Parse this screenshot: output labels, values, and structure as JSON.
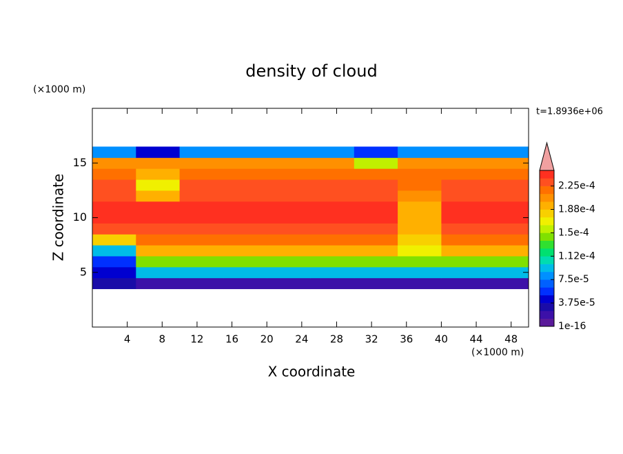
{
  "chart_data": {
    "type": "heatmap",
    "title": "density of cloud",
    "x_label": "X coordinate",
    "y_label": "Z coordinate",
    "x_unit": "(×1000 m)",
    "y_unit": "(×1000 m)",
    "time_label": "t=1.8936e+06",
    "xlim": [
      0,
      50
    ],
    "ylim": [
      0,
      20
    ],
    "xticks": [
      4,
      8,
      12,
      16,
      20,
      24,
      28,
      32,
      36,
      40,
      44,
      48
    ],
    "yticks": [
      5,
      10,
      15
    ],
    "x_edges": [
      0,
      5,
      10,
      15,
      20,
      25,
      30,
      35,
      40,
      45,
      50
    ],
    "y_edges": [
      3.5,
      4.5,
      5.5,
      6.5,
      7.5,
      8.5,
      9.5,
      10.5,
      11.5,
      12.5,
      13.5,
      14.5,
      15.5,
      16.5
    ],
    "values": [
      [
        3e-05,
        2e-05,
        2e-05,
        2e-05,
        2e-05,
        2e-05,
        2e-05,
        2e-05,
        2e-05,
        2e-05
      ],
      [
        4e-05,
        9e-05,
        9e-05,
        9e-05,
        9e-05,
        9e-05,
        9e-05,
        9e-05,
        9e-05,
        9e-05
      ],
      [
        6e-05,
        0.00015,
        0.00015,
        0.00015,
        0.00015,
        0.00015,
        0.00015,
        0.00015,
        0.00015,
        0.00015
      ],
      [
        0.0001,
        0.00019,
        0.00019,
        0.00019,
        0.00019,
        0.00019,
        0.00019,
        0.00017,
        0.00019,
        0.00019
      ],
      [
        0.00018,
        0.000215,
        0.000215,
        0.000215,
        0.000215,
        0.000215,
        0.000215,
        0.00018,
        0.000215,
        0.000215
      ],
      [
        0.00023,
        0.00023,
        0.00023,
        0.00023,
        0.00023,
        0.00023,
        0.00023,
        0.00019,
        0.00023,
        0.00023
      ],
      [
        0.00024,
        0.00024,
        0.00024,
        0.00024,
        0.00024,
        0.00024,
        0.00024,
        0.00019,
        0.00024,
        0.00024
      ],
      [
        0.00024,
        0.00024,
        0.00024,
        0.00024,
        0.00024,
        0.00024,
        0.00024,
        0.0002,
        0.00024,
        0.00024
      ],
      [
        0.000235,
        0.00019,
        0.000235,
        0.000235,
        0.000235,
        0.000235,
        0.000235,
        0.00021,
        0.000235,
        0.000235
      ],
      [
        0.00023,
        0.00017,
        0.00023,
        0.00023,
        0.00023,
        0.00023,
        0.00023,
        0.00022,
        0.00023,
        0.00023
      ],
      [
        0.000225,
        0.00019,
        0.000225,
        0.000225,
        0.000225,
        0.000225,
        0.000225,
        0.000225,
        0.000225,
        0.000225
      ],
      [
        0.00021,
        0.00021,
        0.00021,
        0.00021,
        0.00021,
        0.00021,
        0.00016,
        0.00021,
        0.00021,
        0.00021
      ],
      [
        8e-05,
        5e-05,
        8e-05,
        8e-05,
        8e-05,
        8e-05,
        6e-05,
        8e-05,
        8e-05,
        8e-05
      ]
    ],
    "clim": [
      1e-16,
      0.00025
    ],
    "cticks": [
      {
        "value": 1e-16,
        "label": "1e-16"
      },
      {
        "value": 3.75e-05,
        "label": "3.75e-5"
      },
      {
        "value": 7.5e-05,
        "label": "7.5e-5"
      },
      {
        "value": 0.0001125,
        "label": "1.12e-4"
      },
      {
        "value": 0.00015,
        "label": "1.5e-4"
      },
      {
        "value": 0.0001875,
        "label": "1.88e-4"
      },
      {
        "value": 0.000225,
        "label": "2.25e-4"
      }
    ],
    "colors": [
      "#5a1a9a",
      "#3c10a8",
      "#1a0ca8",
      "#0000d0",
      "#0030ff",
      "#0060ff",
      "#0090ff",
      "#00bce8",
      "#00dcb0",
      "#00e070",
      "#30e030",
      "#80e000",
      "#c0f000",
      "#f0f000",
      "#f8d000",
      "#ffb000",
      "#ff9000",
      "#ff7000",
      "#ff5020",
      "#ff3020"
    ],
    "extend_color": "#f0a0a0"
  }
}
